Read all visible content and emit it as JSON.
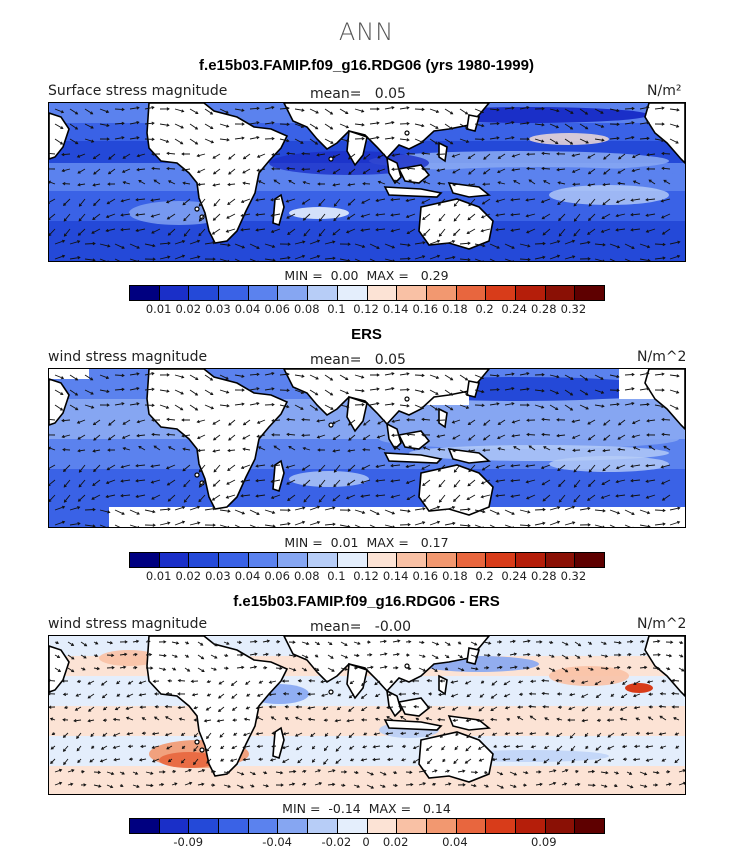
{
  "suptitle": "ANN",
  "colors": [
    "#000080",
    "#1a2fc8",
    "#2449d8",
    "#3a62e6",
    "#5b82ee",
    "#86a6f2",
    "#b7cdf7",
    "#e4eefc",
    "#fce3d5",
    "#f9c1a5",
    "#f29870",
    "#e8663e",
    "#d83c1a",
    "#b51e0a",
    "#8a1005",
    "#5e0000"
  ],
  "panels": [
    {
      "title": "f.e15b03.FAMIP.f09_g16.RDG06 (yrs 1980-1999)",
      "left_label": "Surface stress magnitude",
      "mean_label": "mean=",
      "mean_value": "0.05",
      "units": "N/m²",
      "min_label": "MIN =",
      "min_value": "0.00",
      "max_label": "MAX =",
      "max_value": "0.29",
      "kind": "model",
      "ticks": [
        "0.01",
        "0.02",
        "0.03",
        "0.04",
        "0.06",
        "0.08",
        "0.1",
        "0.12",
        "0.14",
        "0.16",
        "0.18",
        "0.2",
        "0.24",
        "0.28",
        "0.32"
      ]
    },
    {
      "title": "ERS",
      "left_label": "wind stress magnitude",
      "mean_label": "mean=",
      "mean_value": "0.05",
      "units": "N/m^2",
      "min_label": "MIN =",
      "min_value": "0.01",
      "max_label": "MAX =",
      "max_value": "0.17",
      "kind": "obs",
      "ticks": [
        "0.01",
        "0.02",
        "0.03",
        "0.04",
        "0.06",
        "0.08",
        "0.1",
        "0.12",
        "0.14",
        "0.16",
        "0.18",
        "0.2",
        "0.24",
        "0.28",
        "0.32"
      ]
    },
    {
      "title": "f.e15b03.FAMIP.f09_g16.RDG06 - ERS",
      "left_label": "wind stress magnitude",
      "mean_label": "mean=",
      "mean_value": "-0.00",
      "units": "N/m^2",
      "min_label": "MIN =",
      "min_value": "-0.14",
      "max_label": "MAX =",
      "max_value": "0.14",
      "kind": "diff",
      "ticks": [
        "-0.09",
        "-0.04",
        "-0.02",
        "0",
        "0.02",
        "0.04",
        "0.09"
      ]
    }
  ]
}
